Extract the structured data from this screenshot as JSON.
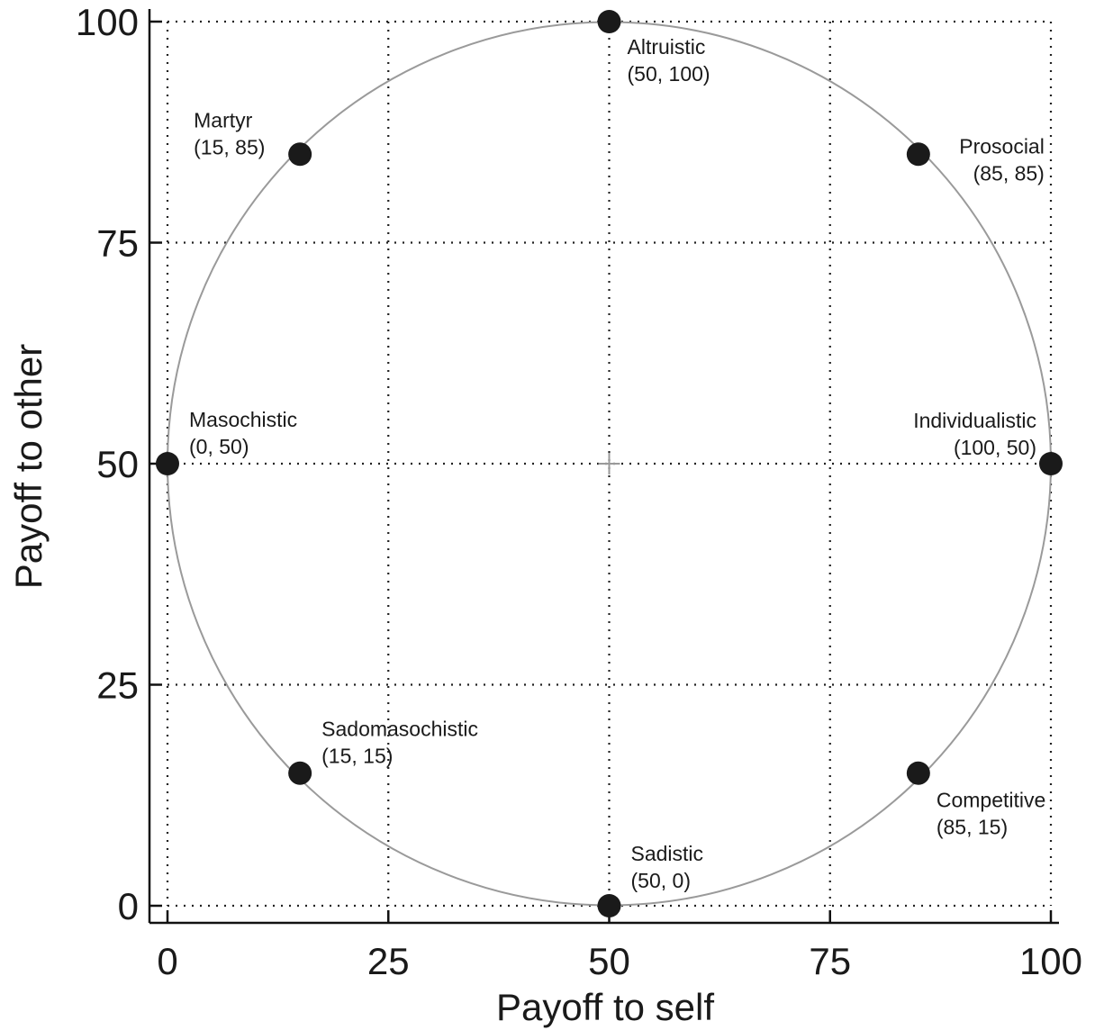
{
  "chart_data": {
    "type": "scatter",
    "title": "",
    "xlabel": "Payoff to self",
    "ylabel": "Payoff to other",
    "xlim": [
      0,
      100
    ],
    "ylim": [
      0,
      100
    ],
    "xticks": [
      "0",
      "25",
      "50",
      "75",
      "100"
    ],
    "yticks": [
      "0",
      "25",
      "50",
      "75",
      "100"
    ],
    "grid": "dotted",
    "circle": {
      "center": [
        50,
        50
      ],
      "radius": 50,
      "color": "#9a9a9a"
    },
    "center_marker": "+",
    "point_color": "#1a1a1a",
    "points": [
      {
        "name": "Altruistic",
        "coords": "(50, 100)",
        "x": 50,
        "y": 100
      },
      {
        "name": "Prosocial",
        "coords": "(85, 85)",
        "x": 85,
        "y": 85
      },
      {
        "name": "Individualistic",
        "coords": "(100, 50)",
        "x": 100,
        "y": 50
      },
      {
        "name": "Competitive",
        "coords": "(85, 15)",
        "x": 85,
        "y": 15
      },
      {
        "name": "Sadistic",
        "coords": "(50, 0)",
        "x": 50,
        "y": 0
      },
      {
        "name": "Sadomasochistic",
        "coords": "(15, 15)",
        "x": 15,
        "y": 15
      },
      {
        "name": "Masochistic",
        "coords": "(0, 50)",
        "x": 0,
        "y": 50
      },
      {
        "name": "Martyr",
        "coords": "(15, 85)",
        "x": 15,
        "y": 85
      }
    ]
  }
}
